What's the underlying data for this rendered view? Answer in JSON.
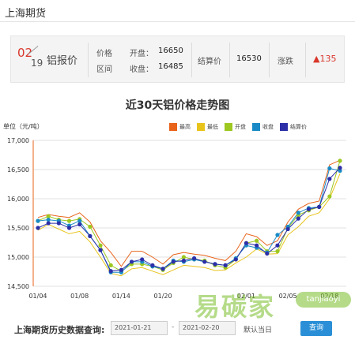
{
  "page_title": "上海期货",
  "info": {
    "month": "02",
    "day": "19",
    "product": "铝报价",
    "price_label": "价格",
    "range_label": "区间",
    "open_label": "开盘：",
    "open_value": "16650",
    "close_label": "收盘：",
    "close_value": "16485",
    "settle_label": "结算价",
    "settle_value": "16530",
    "change_label": "涨跌",
    "change_value": "135",
    "change_color": "#d9362b"
  },
  "chart_data": {
    "type": "line",
    "title": "近30天铝价格走势图",
    "unit_label": "单位（元/吨）",
    "ylim": [
      14500,
      17000
    ],
    "y_ticks": [
      "17,000",
      "16,500",
      "16,000",
      "15,500",
      "15,000",
      "14,500"
    ],
    "x_tick_labels": [
      "01/04",
      "01/08",
      "01/14",
      "01/20",
      "02/01",
      "02/05",
      "02/18"
    ],
    "x": [
      "01/04",
      "01/05",
      "01/06",
      "01/07",
      "01/08",
      "01/11",
      "01/12",
      "01/13",
      "01/14",
      "01/15",
      "01/18",
      "01/19",
      "01/20",
      "01/21",
      "01/22",
      "01/25",
      "01/26",
      "01/27",
      "01/28",
      "01/29",
      "02/01",
      "02/02",
      "02/03",
      "02/04",
      "02/05",
      "02/08",
      "02/09",
      "02/10",
      "02/18",
      "02/19"
    ],
    "grid": true,
    "legend_position": "top-right",
    "series": [
      {
        "name": "最高",
        "color": "#e8641b",
        "values": [
          15680,
          15730,
          15700,
          15680,
          15760,
          15600,
          15280,
          15080,
          14840,
          15100,
          15100,
          15000,
          14880,
          15040,
          15080,
          15050,
          15030,
          14980,
          14940,
          15100,
          15400,
          15350,
          15200,
          15280,
          15600,
          15820,
          15920,
          15960,
          16580,
          16660
        ]
      },
      {
        "name": "最低",
        "color": "#e8c41b",
        "values": [
          15460,
          15560,
          15480,
          15400,
          15440,
          15260,
          15000,
          14720,
          14680,
          14800,
          14820,
          14760,
          14700,
          14780,
          14860,
          14840,
          14820,
          14770,
          14780,
          14900,
          15000,
          15140,
          15050,
          15060,
          15380,
          15520,
          15700,
          15760,
          16000,
          16430
        ]
      },
      {
        "name": "开盘",
        "color": "#9dc820",
        "values": [
          15620,
          15700,
          15640,
          15620,
          15650,
          15520,
          15200,
          14860,
          14760,
          14880,
          14880,
          14840,
          14780,
          14900,
          15000,
          14960,
          14940,
          14860,
          14820,
          14960,
          15240,
          15280,
          15100,
          15100,
          15500,
          15720,
          15800,
          15860,
          16040,
          16650
        ]
      },
      {
        "name": "收盘",
        "color": "#1a8ac6",
        "values": [
          15620,
          15640,
          15620,
          15540,
          15620,
          15360,
          15120,
          14740,
          14740,
          14920,
          14920,
          14840,
          14800,
          14940,
          14920,
          14960,
          14920,
          14880,
          14860,
          14980,
          15200,
          15160,
          15080,
          15380,
          15520,
          15760,
          15840,
          15860,
          16520,
          16480
        ]
      },
      {
        "name": "结算价",
        "color": "#2d2fa8",
        "values": [
          15500,
          15580,
          15580,
          15500,
          15560,
          15360,
          15120,
          14760,
          14780,
          14920,
          14960,
          14860,
          14800,
          14920,
          14940,
          14980,
          14920,
          14880,
          14860,
          14960,
          15240,
          15200,
          15060,
          15200,
          15480,
          15660,
          15820,
          15860,
          16340,
          16530
        ]
      }
    ]
  },
  "history": {
    "label": "上海期货历史数据查询:",
    "start_date": "2021-01-21",
    "end_date": "2021-02-20",
    "today_label": "默认当日",
    "query_button": "查询"
  },
  "watermark": {
    "text": "易碳家",
    "site": "tanjiaoyi"
  }
}
